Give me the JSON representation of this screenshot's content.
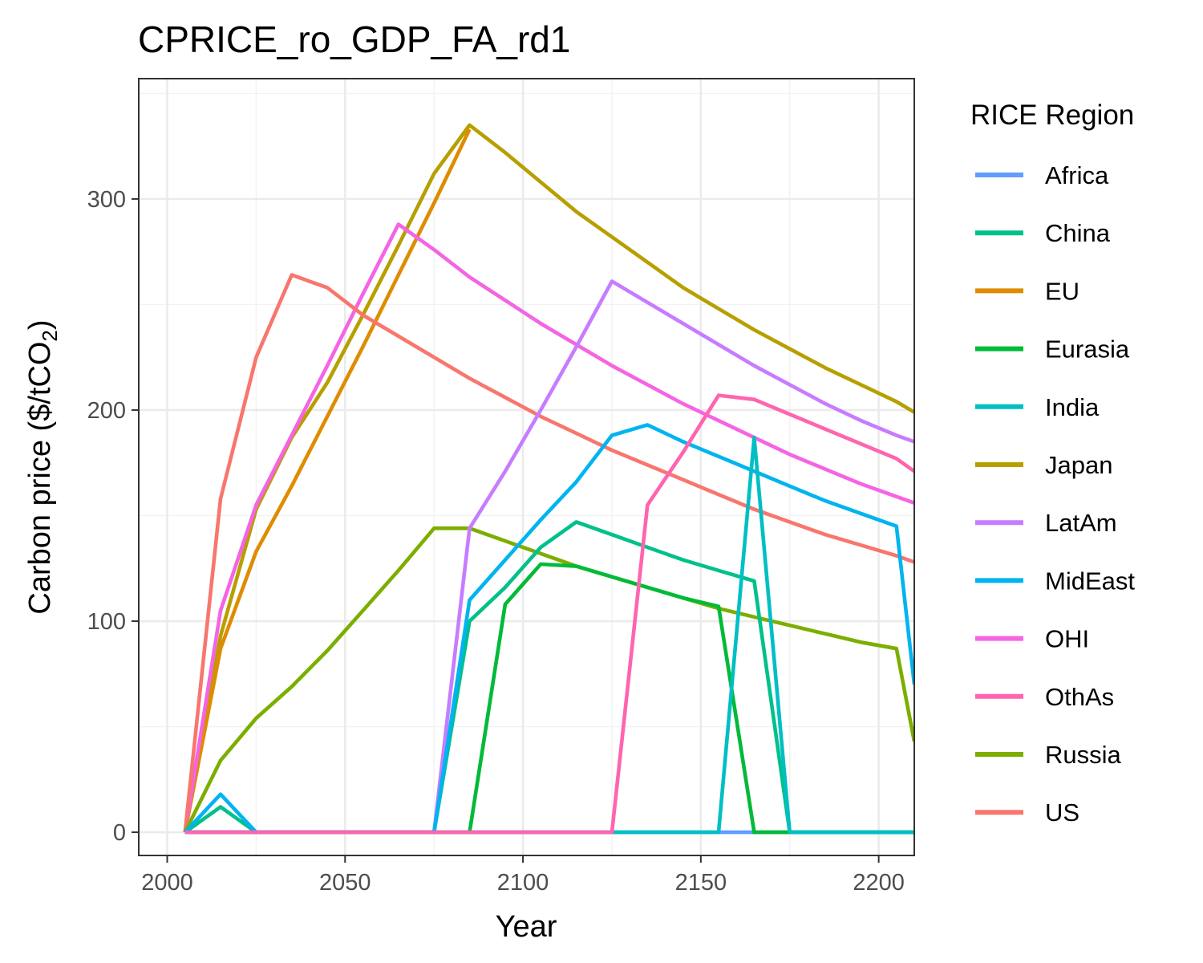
{
  "chart_data": {
    "type": "line",
    "title": "CPRICE_ro_GDP_FA_rd1",
    "xlabel": "Year",
    "ylabel": "Carbon price ($/tCO",
    "ylabel_sub": "2",
    "ylabel_end": ")",
    "xlim": [
      1992,
      2210
    ],
    "ylim": [
      -11,
      357
    ],
    "x_ticks": [
      2000,
      2050,
      2100,
      2150,
      2200
    ],
    "y_ticks": [
      0,
      100,
      200,
      300
    ],
    "x_minor": [
      2025,
      2075,
      2125,
      2175
    ],
    "y_minor": [
      50,
      150,
      250,
      350
    ],
    "legend_title": "RICE Region",
    "legend_position": "right",
    "series": [
      {
        "name": "Africa",
        "color": "#619CFF",
        "x": [
          2005,
          2015,
          2025,
          2035,
          2045,
          2055,
          2065,
          2075,
          2085,
          2095,
          2105,
          2115,
          2125,
          2135,
          2145,
          2155,
          2165,
          2175,
          2185,
          2195,
          2205,
          2210
        ],
        "y": [
          0,
          0,
          0,
          0,
          0,
          0,
          0,
          0,
          0,
          0,
          0,
          0,
          0,
          0,
          0,
          0,
          0,
          0,
          0,
          0,
          0,
          0
        ]
      },
      {
        "name": "Japan",
        "color": "#B79F00",
        "x": [
          2005,
          2015,
          2025,
          2035,
          2045,
          2055,
          2065,
          2075,
          2085,
          2095,
          2105,
          2115,
          2125,
          2135,
          2145,
          2155,
          2165,
          2175,
          2185,
          2195,
          2205,
          2210
        ],
        "y": [
          0,
          93,
          153,
          187,
          213,
          245,
          278,
          312,
          335,
          322,
          308,
          294,
          282,
          270,
          258,
          248,
          238,
          229,
          220,
          212,
          204,
          199
        ]
      },
      {
        "name": "EU",
        "color": "#DE8C00",
        "x": [
          2005,
          2015,
          2025,
          2035,
          2045,
          2055,
          2065,
          2075,
          2085
        ],
        "y": [
          0,
          87,
          133,
          164,
          197,
          230,
          264,
          298,
          333
        ]
      },
      {
        "name": "OHI",
        "color": "#F564E3",
        "x": [
          2005,
          2015,
          2025,
          2035,
          2045,
          2055,
          2065,
          2075,
          2085,
          2095,
          2105,
          2115,
          2125,
          2135,
          2145,
          2155,
          2165,
          2175,
          2185,
          2195,
          2205,
          2210
        ],
        "y": [
          0,
          105,
          155,
          188,
          221,
          255,
          288,
          276,
          263,
          252,
          241,
          231,
          221,
          212,
          203,
          195,
          187,
          179,
          172,
          165,
          159,
          156
        ]
      },
      {
        "name": "US",
        "color": "#F8766D",
        "x": [
          2005,
          2015,
          2025,
          2035,
          2045,
          2055,
          2065,
          2075,
          2085,
          2095,
          2105,
          2115,
          2125,
          2135,
          2145,
          2155,
          2165,
          2175,
          2185,
          2195,
          2205,
          2210
        ],
        "y": [
          0,
          158,
          225,
          264,
          258,
          245,
          235,
          225,
          215,
          206,
          197,
          189,
          181,
          174,
          167,
          160,
          153,
          147,
          141,
          136,
          131,
          128
        ]
      },
      {
        "name": "Russia",
        "color": "#7CAE00",
        "x": [
          2005,
          2015,
          2025,
          2035,
          2045,
          2055,
          2065,
          2075,
          2085,
          2095,
          2105,
          2115,
          2125,
          2135,
          2145,
          2155,
          2165,
          2175,
          2185,
          2195,
          2205,
          2210
        ],
        "y": [
          0,
          34,
          54,
          69,
          86,
          105,
          124,
          144,
          144,
          138,
          132,
          126,
          121,
          116,
          111,
          106,
          102,
          98,
          94,
          90,
          87,
          43
        ]
      },
      {
        "name": "LatAm",
        "color": "#C77CFF",
        "x": [
          2005,
          2075,
          2085,
          2095,
          2105,
          2115,
          2125,
          2135,
          2145,
          2155,
          2165,
          2175,
          2185,
          2195,
          2205,
          2210
        ],
        "y": [
          0,
          0,
          144,
          171,
          200,
          230,
          261,
          251,
          241,
          231,
          221,
          212,
          203,
          195,
          188,
          185
        ]
      },
      {
        "name": "China",
        "color": "#00C08B",
        "x": [
          2005,
          2015,
          2025,
          2035,
          2045,
          2055,
          2065,
          2075,
          2085,
          2095,
          2105,
          2115,
          2125,
          2135,
          2145,
          2155,
          2165,
          2175,
          2185,
          2195,
          2205,
          2210
        ],
        "y": [
          0,
          12,
          0,
          0,
          0,
          0,
          0,
          0,
          100,
          116,
          135,
          147,
          141,
          135,
          129,
          124,
          119,
          0,
          0,
          0,
          0,
          0
        ]
      },
      {
        "name": "MidEast",
        "color": "#00B4F0",
        "x": [
          2005,
          2015,
          2025,
          2035,
          2045,
          2055,
          2065,
          2075,
          2085,
          2095,
          2105,
          2115,
          2125,
          2135,
          2145,
          2155,
          2165,
          2175,
          2185,
          2195,
          2205,
          2210
        ],
        "y": [
          0,
          18,
          0,
          0,
          0,
          0,
          0,
          0,
          110,
          129,
          148,
          166,
          188,
          193,
          185,
          178,
          171,
          164,
          157,
          151,
          145,
          70
        ]
      },
      {
        "name": "Eurasia",
        "color": "#00BA38",
        "x": [
          2005,
          2015,
          2025,
          2035,
          2045,
          2055,
          2065,
          2075,
          2085,
          2095,
          2105,
          2115,
          2125,
          2135,
          2145,
          2155,
          2165,
          2175,
          2185,
          2195,
          2205,
          2210
        ],
        "y": [
          0,
          0,
          0,
          0,
          0,
          0,
          0,
          0,
          0,
          108,
          127,
          126,
          121,
          116,
          111,
          107,
          0,
          0,
          0,
          0,
          0,
          0
        ]
      },
      {
        "name": "India",
        "color": "#00BFC4",
        "x": [
          2005,
          2015,
          2025,
          2035,
          2045,
          2055,
          2065,
          2075,
          2085,
          2095,
          2105,
          2115,
          2125,
          2135,
          2145,
          2155,
          2165,
          2175,
          2185,
          2195,
          2205,
          2210
        ],
        "y": [
          0,
          0,
          0,
          0,
          0,
          0,
          0,
          0,
          0,
          0,
          0,
          0,
          0,
          0,
          0,
          0,
          187,
          0,
          0,
          0,
          0,
          0
        ]
      },
      {
        "name": "OthAs",
        "color": "#FF64B0",
        "x": [
          2005,
          2015,
          2025,
          2035,
          2045,
          2055,
          2065,
          2075,
          2085,
          2095,
          2105,
          2115,
          2125,
          2135,
          2145,
          2155,
          2165,
          2175,
          2185,
          2195,
          2205,
          2210
        ],
        "y": [
          0,
          0,
          0,
          0,
          0,
          0,
          0,
          0,
          0,
          0,
          0,
          0,
          0,
          155,
          180,
          207,
          205,
          198,
          191,
          184,
          177,
          171
        ]
      }
    ],
    "legend": [
      {
        "name": "Africa",
        "color": "#619CFF"
      },
      {
        "name": "China",
        "color": "#00C08B"
      },
      {
        "name": "EU",
        "color": "#DE8C00"
      },
      {
        "name": "Eurasia",
        "color": "#00BA38"
      },
      {
        "name": "India",
        "color": "#00BFC4"
      },
      {
        "name": "Japan",
        "color": "#B79F00"
      },
      {
        "name": "LatAm",
        "color": "#C77CFF"
      },
      {
        "name": "MidEast",
        "color": "#00B4F0"
      },
      {
        "name": "OHI",
        "color": "#F564E3"
      },
      {
        "name": "OthAs",
        "color": "#FF64B0"
      },
      {
        "name": "Russia",
        "color": "#7CAE00"
      },
      {
        "name": "US",
        "color": "#F8766D"
      }
    ]
  }
}
